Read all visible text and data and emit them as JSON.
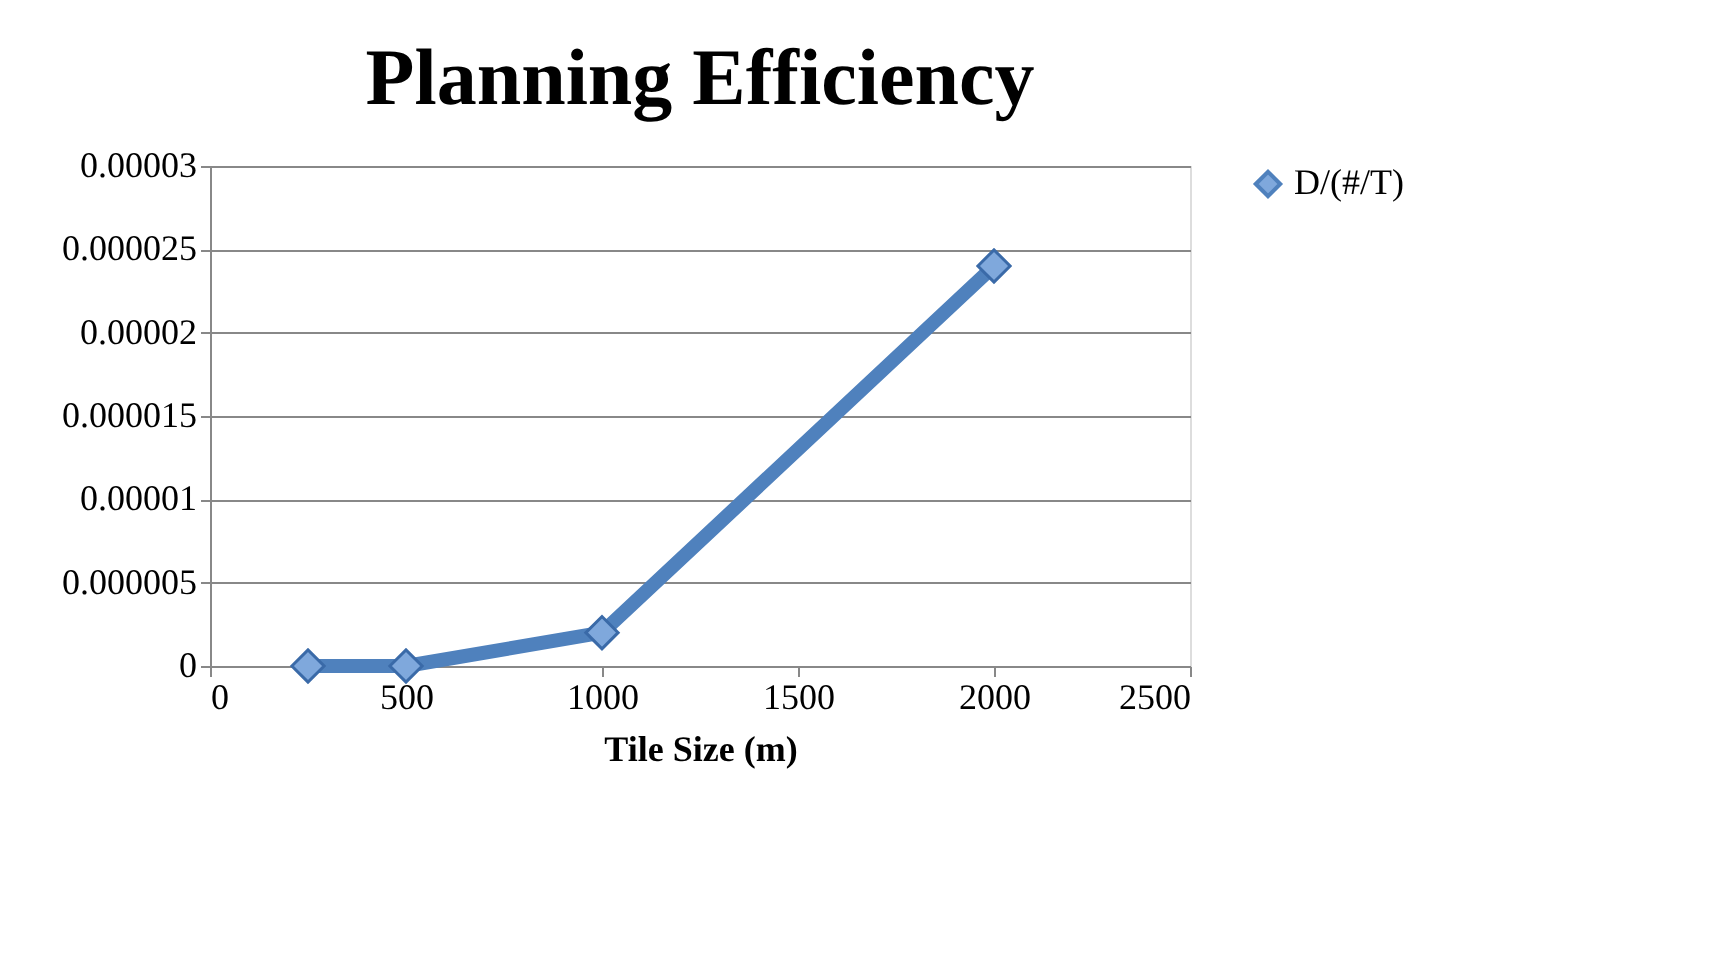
{
  "chart_data": {
    "type": "line",
    "title": "Planning Efficiency",
    "xlabel": "Tile Size (m)",
    "x": [
      250,
      500,
      1000,
      2000
    ],
    "series": [
      {
        "name": "D/(#/T)",
        "color": "#4f81bd",
        "values": [
          0,
          0,
          2e-06,
          2.4e-05
        ]
      }
    ],
    "xlim": [
      0,
      2500
    ],
    "xticks": [
      0,
      500,
      {
        "value": 1000,
        "label": "1000"
      },
      {
        "value": 1500,
        "label": "1500"
      },
      {
        "value": 2000,
        "label": "2000"
      },
      {
        "value": 2500,
        "label": "2500"
      }
    ],
    "ylim": [
      0,
      3e-05
    ],
    "yticks": [
      0,
      {
        "value": 5e-06,
        "label": "0.000005"
      },
      {
        "value": 1e-05,
        "label": "0.00001"
      },
      {
        "value": 1.5e-05,
        "label": "0.000015"
      },
      {
        "value": 2e-05,
        "label": "0.00002"
      },
      {
        "value": 2.5e-05,
        "label": "0.000025"
      },
      {
        "value": 3e-05,
        "label": "0.00003"
      }
    ],
    "grid": "y",
    "legend": "right",
    "marker": "diamond",
    "line_style": "solid"
  }
}
